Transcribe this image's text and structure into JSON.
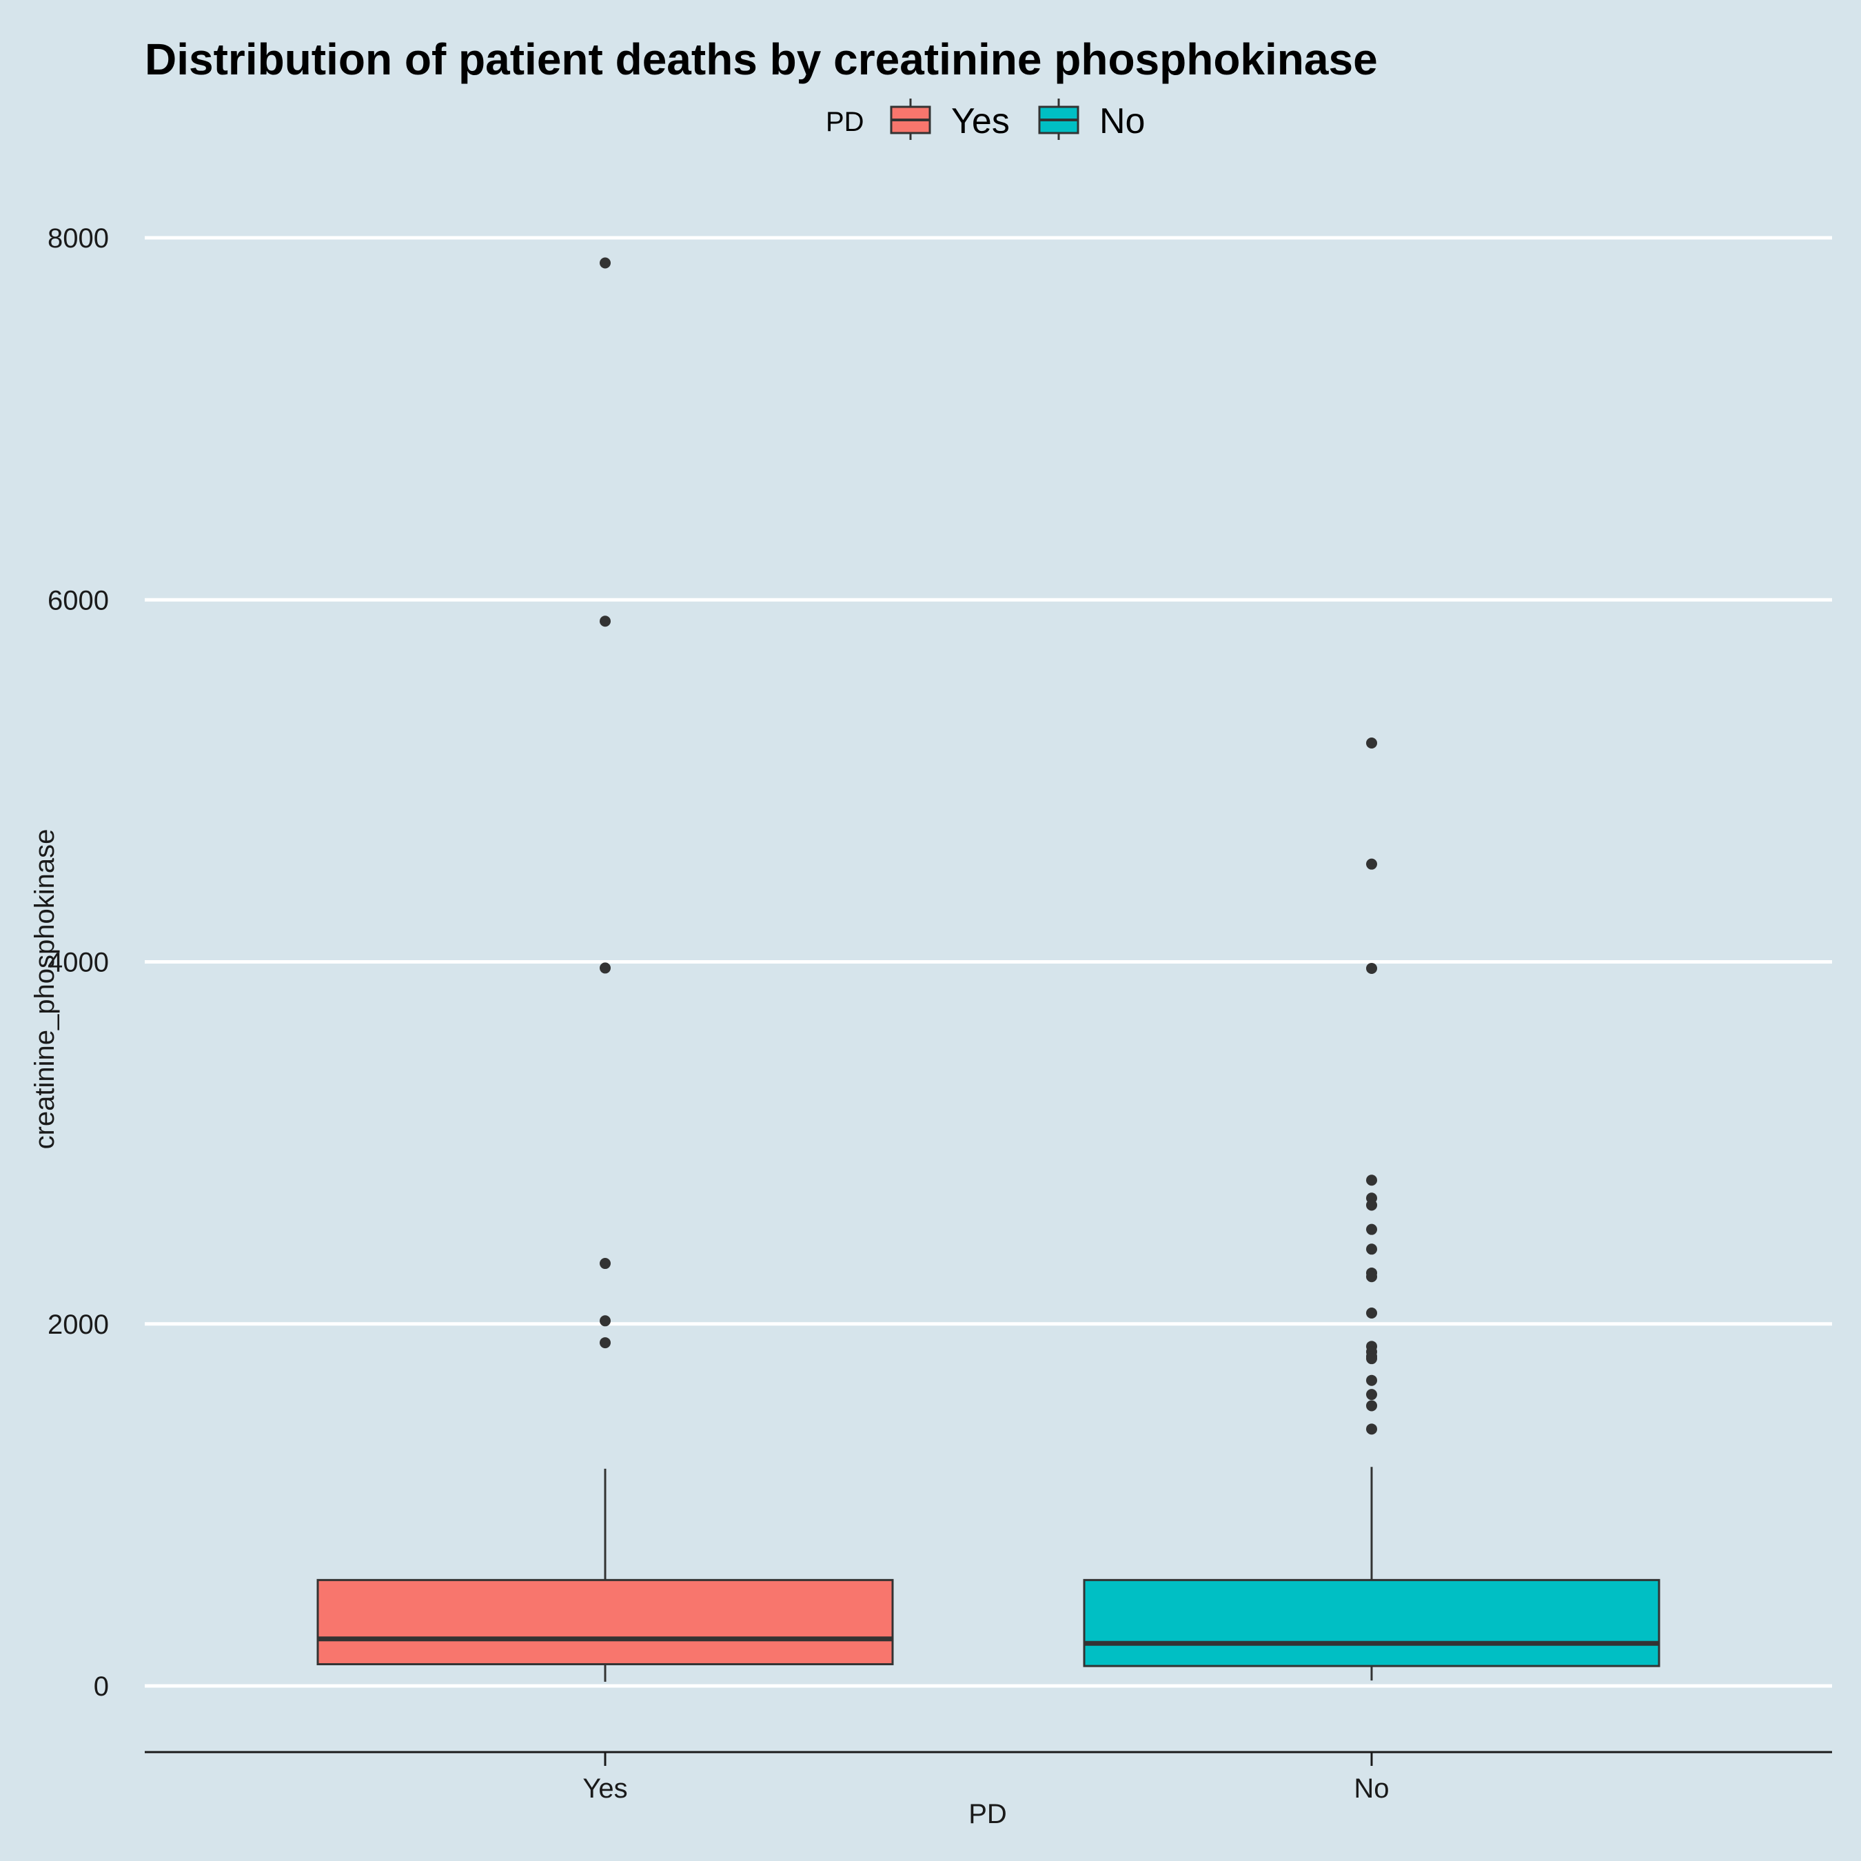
{
  "chart_data": {
    "type": "boxplot",
    "title": "Distribution of patient deaths by creatinine phosphokinase",
    "xlabel": "PD",
    "ylabel": "creatinine_phosphokinase",
    "ylim": [
      -370,
      8250
    ],
    "yticks": [
      0,
      2000,
      4000,
      6000,
      8000
    ],
    "grid": true,
    "legend": {
      "title": "PD",
      "position": "top"
    },
    "categories": [
      "Yes",
      "No"
    ],
    "series": [
      {
        "name": "Yes",
        "color": "#f8766d",
        "whisker_low": 23,
        "q1": 120,
        "median": 260,
        "q3": 585,
        "whisker_high": 1200,
        "outliers": [
          7861,
          5882,
          3966,
          2334,
          2017,
          1896
        ]
      },
      {
        "name": "No",
        "color": "#00bfc4",
        "whisker_low": 30,
        "q1": 110,
        "median": 235,
        "q3": 585,
        "whisker_high": 1210,
        "outliers": [
          5209,
          4540,
          3964,
          2794,
          2695,
          2656,
          2522,
          2413,
          2281,
          2261,
          2060,
          1876,
          1846,
          1820,
          1808,
          1688,
          1610,
          1548,
          1419
        ]
      }
    ]
  }
}
